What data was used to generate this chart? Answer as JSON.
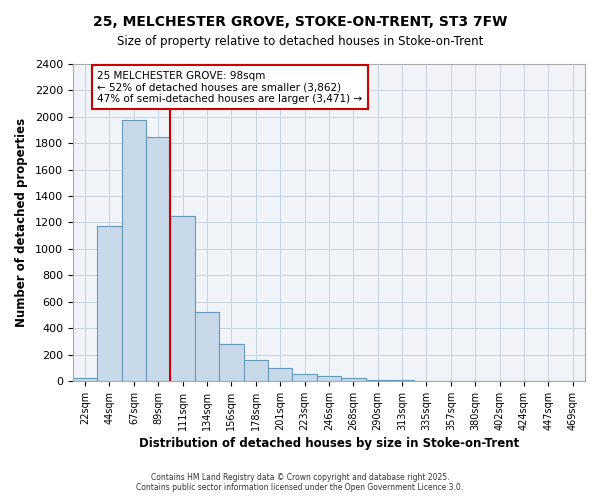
{
  "title1": "25, MELCHESTER GROVE, STOKE-ON-TRENT, ST3 7FW",
  "title2": "Size of property relative to detached houses in Stoke-on-Trent",
  "xlabel": "Distribution of detached houses by size in Stoke-on-Trent",
  "ylabel": "Number of detached properties",
  "categories": [
    "22sqm",
    "44sqm",
    "67sqm",
    "89sqm",
    "111sqm",
    "134sqm",
    "156sqm",
    "178sqm",
    "201sqm",
    "223sqm",
    "246sqm",
    "268sqm",
    "290sqm",
    "313sqm",
    "335sqm",
    "357sqm",
    "380sqm",
    "402sqm",
    "424sqm",
    "447sqm",
    "469sqm"
  ],
  "values": [
    25,
    1175,
    1975,
    1850,
    1250,
    520,
    280,
    155,
    95,
    50,
    40,
    25,
    10,
    5,
    3,
    2,
    2,
    1,
    1,
    1,
    1
  ],
  "bar_color": "#c8daea",
  "bar_edge_color": "#6699bb",
  "grid_color": "#c8d4e0",
  "background_color": "#ffffff",
  "plot_bg_color": "#f0f4f8",
  "red_line_x": 3.5,
  "annotation_line1": "25 MELCHESTER GROVE: 98sqm",
  "annotation_line2": "← 52% of detached houses are smaller (3,862)",
  "annotation_line3": "47% of semi-detached houses are larger (3,471) →",
  "red_line_color": "#cc0000",
  "annotation_box_color": "#ffffff",
  "annotation_box_edge": "#cc0000",
  "ylim": [
    0,
    2400
  ],
  "yticks": [
    0,
    200,
    400,
    600,
    800,
    1000,
    1200,
    1400,
    1600,
    1800,
    2000,
    2200,
    2400
  ],
  "footer1": "Contains HM Land Registry data © Crown copyright and database right 2025.",
  "footer2": "Contains public sector information licensed under the Open Government Licence 3.0."
}
